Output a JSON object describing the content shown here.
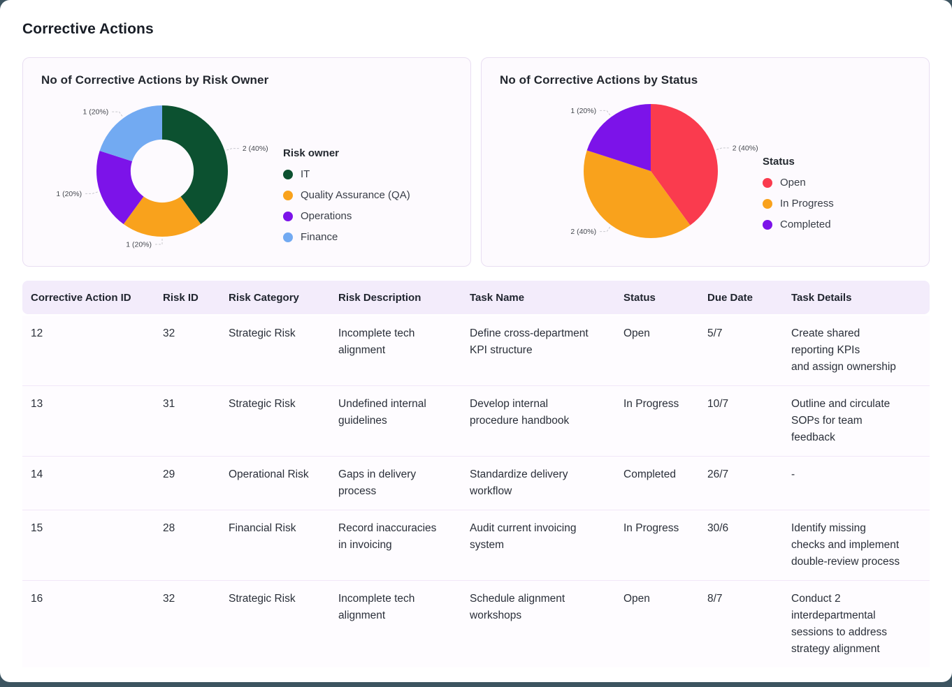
{
  "page": {
    "title": "Corrective Actions"
  },
  "chart_data": [
    {
      "type": "pie",
      "variant": "donut",
      "donut_hole": 0.48,
      "title": "No of Corrective Actions by Risk Owner",
      "legend_title": "Risk owner",
      "legend_position": "right",
      "labels": [
        "IT",
        "Quality Assurance (QA)",
        "Operations",
        "Finance"
      ],
      "values": [
        2,
        1,
        1,
        1
      ],
      "percent_labels": [
        "2 (40%)",
        "1 (20%)",
        "1 (20%)",
        "1 (20%)"
      ],
      "colors": [
        "#0c5130",
        "#f9a21c",
        "#7c13e9",
        "#72aaf2"
      ]
    },
    {
      "type": "pie",
      "variant": "pie",
      "donut_hole": 0,
      "title": "No of Corrective Actions by Status",
      "legend_title": "Status",
      "legend_position": "right",
      "labels": [
        "Open",
        "In Progress",
        "Completed"
      ],
      "values": [
        2,
        2,
        1
      ],
      "percent_labels": [
        "2 (40%)",
        "2 (40%)",
        "1 (20%)"
      ],
      "colors": [
        "#fa3b4e",
        "#f9a21c",
        "#7c13e9"
      ]
    }
  ],
  "table": {
    "columns": [
      "Corrective Action ID",
      "Risk ID",
      "Risk Category",
      "Risk Description",
      "Task Name",
      "Status",
      "Due Date",
      "Task Details"
    ],
    "rows": [
      [
        "12",
        "32",
        "Strategic Risk",
        "Incomplete tech\nalignment",
        "Define cross-department\nKPI structure",
        "Open",
        "5/7",
        "Create shared\nreporting KPIs\nand assign ownership"
      ],
      [
        "13",
        "31",
        "Strategic Risk",
        "Undefined internal\nguidelines",
        "Develop internal\nprocedure handbook",
        "In Progress",
        "10/7",
        "Outline and circulate\nSOPs for team\nfeedback"
      ],
      [
        "14",
        "29",
        "Operational Risk",
        "Gaps in delivery\nprocess",
        "Standardize delivery\nworkflow",
        "Completed",
        "26/7",
        "-"
      ],
      [
        "15",
        "28",
        "Financial Risk",
        "Record inaccuracies\nin invoicing",
        "Audit current invoicing\nsystem",
        "In Progress",
        "30/6",
        "Identify missing\nchecks and implement\ndouble-review process"
      ],
      [
        "16",
        "32",
        "Strategic Risk",
        "Incomplete tech\nalignment",
        "Schedule alignment\nworkshops",
        "Open",
        "8/7",
        "Conduct 2\ninterdepartmental\nsessions to address\nstrategy alignment"
      ]
    ]
  },
  "colors": {
    "background_behind_card": "#3c5460",
    "card_background": "#fdfafe",
    "card_border": "#e9def2",
    "table_header_background": "#f3ecfb"
  }
}
